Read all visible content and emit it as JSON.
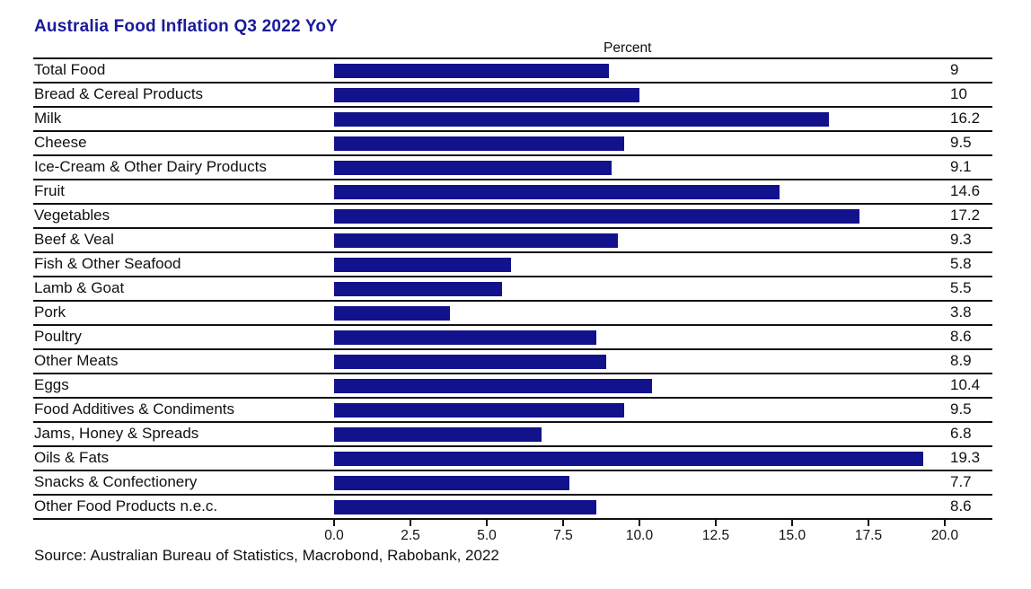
{
  "title": "Australia Food Inflation Q3 2022 YoY",
  "source": "Source: Australian Bureau of Statistics, Macrobond, Rabobank, 2022",
  "colors": {
    "title_blue": "#1a1a9c",
    "bar_navy": "#12128c",
    "line_black": "#111111"
  },
  "chart_data": {
    "type": "bar",
    "orientation": "horizontal",
    "title": "Australia Food Inflation Q3 2022 YoY",
    "xlabel": "Percent",
    "categories": [
      "Total Food",
      "Bread & Cereal Products",
      "Milk",
      "Cheese",
      "Ice-Cream & Other Dairy Products",
      "Fruit",
      "Vegetables",
      "Beef & Veal",
      "Fish & Other Seafood",
      "Lamb & Goat",
      "Pork",
      "Poultry",
      "Other Meats",
      "Eggs",
      "Food Additives & Condiments",
      "Jams, Honey & Spreads",
      "Oils & Fats",
      "Snacks & Confectionery",
      "Other Food Products n.e.c."
    ],
    "values": [
      9,
      10,
      16.2,
      9.5,
      9.1,
      14.6,
      17.2,
      9.3,
      5.8,
      5.5,
      3.8,
      8.6,
      8.9,
      10.4,
      9.5,
      6.8,
      19.3,
      7.7,
      8.6
    ],
    "value_labels": [
      "9",
      "10",
      "16.2",
      "9.5",
      "9.1",
      "14.6",
      "17.2",
      "9.3",
      "5.8",
      "5.5",
      "3.8",
      "8.6",
      "8.9",
      "10.4",
      "9.5",
      "6.8",
      "19.3",
      "7.7",
      "8.6"
    ],
    "xlim": [
      0,
      20
    ],
    "xticks": [
      0,
      2.5,
      5,
      7.5,
      10,
      12.5,
      15,
      17.5,
      20
    ],
    "xtick_labels": [
      "0.0",
      "2.5",
      "5.0",
      "7.5",
      "10.0",
      "12.5",
      "15.0",
      "17.5",
      "20.0"
    ],
    "grid": false,
    "legend": "none",
    "bar_color": "#12128c"
  }
}
